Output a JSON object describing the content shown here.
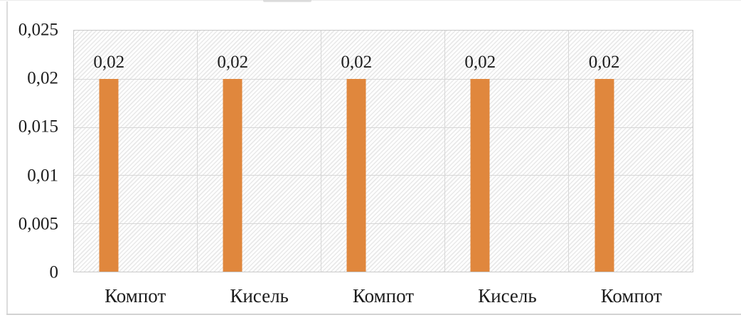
{
  "page": {
    "background": "#ffffff",
    "outer_border_color": "#d9d9d9",
    "cropped_fragment_color": "#c6c6c6"
  },
  "chart_data": {
    "type": "bar",
    "title": "",
    "xlabel": "",
    "ylabel": "",
    "categories": [
      "Компот",
      "Кисель",
      "Компот",
      "Кисель",
      "Компот"
    ],
    "values": [
      0.02,
      0.02,
      0.02,
      0.02,
      0.02
    ],
    "data_labels": [
      "0,02",
      "0,02",
      "0,02",
      "0,02",
      "0,02"
    ],
    "series": [
      {
        "name": "",
        "values": [
          0.02,
          0.02,
          0.02,
          0.02,
          0.02
        ]
      }
    ],
    "ylim": [
      0,
      0.025
    ],
    "y_ticks": [
      {
        "value": 0,
        "label": "0"
      },
      {
        "value": 0.005,
        "label": "0,005"
      },
      {
        "value": 0.01,
        "label": "0,01"
      },
      {
        "value": 0.015,
        "label": "0,015"
      },
      {
        "value": 0.02,
        "label": "0,02"
      },
      {
        "value": 0.025,
        "label": "0,025"
      }
    ],
    "decimal_separator": ",",
    "grid": true,
    "grid_vertical": true,
    "legend": "none",
    "plot_background_pattern": "light-upward-diagonal-hatch",
    "bar_color": "#e0873d",
    "grid_color": "#d7d7d7",
    "hatch_line_color": "#e9e9e9",
    "text_color": "#1c1c1c"
  }
}
